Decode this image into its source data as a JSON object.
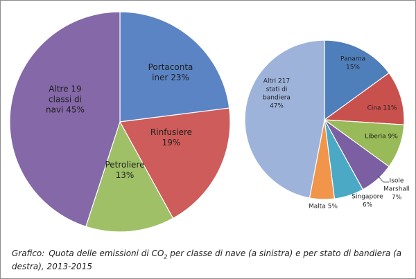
{
  "chart_data": [
    {
      "type": "pie",
      "title": "",
      "slices": [
        {
          "label": "Portacontainer",
          "label_lines": [
            "Portaconta",
            "iner 23%"
          ],
          "value": 23,
          "color": "#5b84c4"
        },
        {
          "label": "Rinfusiere",
          "label_lines": [
            "Rinfusiere",
            "19%"
          ],
          "value": 19,
          "color": "#cd5c5a"
        },
        {
          "label": "Petroliere",
          "label_lines": [
            "Petroliere",
            "13%"
          ],
          "value": 13,
          "color": "#9fc067"
        },
        {
          "label": "Altre 19 classi di navi",
          "label_lines": [
            "Altre 19",
            "classi di",
            "navi 45%"
          ],
          "value": 45,
          "color": "#8468a8"
        }
      ]
    },
    {
      "type": "pie",
      "title": "",
      "slices": [
        {
          "label": "Panama",
          "label_lines": [
            "Panama",
            "15%"
          ],
          "value": 15,
          "color": "#4f7fba"
        },
        {
          "label": "Cina",
          "label_lines": [
            "Cina 11%"
          ],
          "value": 11,
          "color": "#c8504d"
        },
        {
          "label": "Liberia",
          "label_lines": [
            "Liberia 9%"
          ],
          "value": 9,
          "color": "#99ba58"
        },
        {
          "label": "Isole Marshall",
          "label_lines": [
            "Isole",
            "Marshall",
            "7%"
          ],
          "value": 7,
          "color": "#7b5fa2"
        },
        {
          "label": "Singapore",
          "label_lines": [
            "Singapore",
            "6%"
          ],
          "value": 6,
          "color": "#4ba9c5"
        },
        {
          "label": "Malta",
          "label_lines": [
            "Malta 5%"
          ],
          "value": 5,
          "color": "#f0954a"
        },
        {
          "label": "Altri 217 stati di bandiera",
          "label_lines": [
            "Altri 217",
            "stati di",
            "bandiera",
            "47%"
          ],
          "value": 47,
          "color": "#9eb3da"
        }
      ]
    }
  ],
  "caption": {
    "prefix": "Grafico:",
    "text_before": "Quota delle emissioni di CO",
    "subscript": "2",
    "text_after": " per classe di nave (a sinistra) e per stato di bandiera (a destra), 2013-2015"
  }
}
